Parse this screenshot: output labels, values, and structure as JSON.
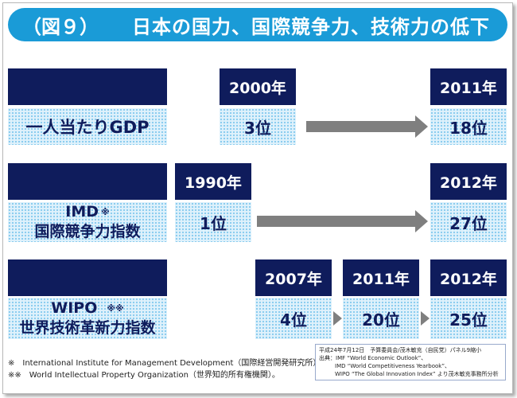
{
  "title": {
    "figure": "（図９）",
    "text": "日本の国力、国際競争力、技術力の低下"
  },
  "rows": [
    {
      "label": "一人当たりGDP",
      "years": [
        "2000年",
        "2011年"
      ],
      "ranks": [
        "3位",
        "18位"
      ]
    },
    {
      "label_line1": "IMD",
      "label_mark": "※",
      "label_line2": "国際競争力指数",
      "years": [
        "1990年",
        "2012年"
      ],
      "ranks": [
        "1位",
        "27位"
      ]
    },
    {
      "label_line1": "WIPO",
      "label_mark": "※※",
      "label_line2": "世界技術革新力指数",
      "years": [
        "2007年",
        "2011年",
        "2012年"
      ],
      "ranks": [
        "4位",
        "20位",
        "25位"
      ]
    }
  ],
  "footnotes": [
    "※　International Institute for Management Development（国際経営開発研究所）。",
    "※※　World Intellectual Property Organization（世界知的所有権機関）。"
  ],
  "source": {
    "line1": "平成24年7月12日　予算委員会/茂木敏充（自民党）パネル9縮小",
    "line2": "出典：IMF “World Economic Outlook”、",
    "line3": "IMD “World Competitiveness Yearbook”、",
    "line4": "WIPO “The Global Innovation Index” より茂木敏充事務所分析"
  }
}
